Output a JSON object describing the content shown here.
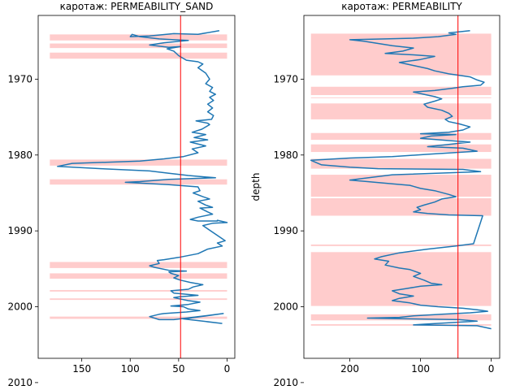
{
  "chart_data": [
    {
      "type": "line",
      "title": "каротаж: PERMEABILITY_SAND",
      "xlabel": "",
      "ylabel": "",
      "x_inverted": true,
      "y_inverted": true,
      "xlim": [
        195,
        -8
      ],
      "ylim": [
        2006.8,
        1961.6
      ],
      "xticks": [
        150,
        100,
        50,
        0
      ],
      "yticks": [
        1970,
        1980,
        1990,
        2000,
        2010
      ],
      "grid": false,
      "threshold": {
        "x": 48,
        "color": "#ff0000"
      },
      "series_color": "#1f77b4",
      "fill_color": "#ffcccc",
      "fill_bands": [
        [
          1964.1,
          1964.9,
          183
        ],
        [
          1965.3,
          1965.9,
          183
        ],
        [
          1966.5,
          1967.3,
          183
        ],
        [
          1980.6,
          1981.4,
          183
        ],
        [
          1983.2,
          1983.9,
          183
        ],
        [
          1994.1,
          1994.9,
          183
        ],
        [
          1995.6,
          1996.3,
          183
        ],
        [
          1997.8,
          1998.0,
          183
        ],
        [
          1998.9,
          1999.1,
          183
        ],
        [
          2001.3,
          2001.6,
          183
        ]
      ],
      "series": [
        {
          "points": [
            [
              8,
              1963.6
            ],
            [
              30,
              1964.1
            ],
            [
              55,
              1964.0
            ],
            [
              80,
              1964.3
            ],
            [
              100,
              1964.4
            ],
            [
              98,
              1964.1
            ],
            [
              90,
              1964.4
            ],
            [
              70,
              1964.7
            ],
            [
              55,
              1964.8
            ],
            [
              40,
              1964.9
            ],
            [
              65,
              1965.2
            ],
            [
              80,
              1965.5
            ],
            [
              60,
              1965.8
            ],
            [
              48,
              1965.7
            ],
            [
              62,
              1966.0
            ],
            [
              55,
              1966.3
            ],
            [
              50,
              1966.9
            ],
            [
              42,
              1967.5
            ],
            [
              30,
              1967.7
            ],
            [
              25,
              1968.0
            ],
            [
              30,
              1968.5
            ],
            [
              22,
              1969.2
            ],
            [
              18,
              1970.0
            ],
            [
              22,
              1970.6
            ],
            [
              15,
              1971.1
            ],
            [
              18,
              1971.6
            ],
            [
              12,
              1972.0
            ],
            [
              18,
              1972.4
            ],
            [
              14,
              1972.8
            ],
            [
              20,
              1973.3
            ],
            [
              15,
              1973.8
            ],
            [
              20,
              1974.3
            ],
            [
              14,
              1974.8
            ],
            [
              16,
              1975.3
            ],
            [
              32,
              1975.5
            ],
            [
              20,
              1975.8
            ],
            [
              18,
              1976.0
            ],
            [
              26,
              1976.6
            ],
            [
              36,
              1977.0
            ],
            [
              22,
              1977.3
            ],
            [
              34,
              1977.7
            ],
            [
              20,
              1978.0
            ],
            [
              38,
              1978.3
            ],
            [
              22,
              1978.8
            ],
            [
              36,
              1979.2
            ],
            [
              30,
              1979.7
            ],
            [
              45,
              1980.2
            ],
            [
              65,
              1980.5
            ],
            [
              90,
              1980.8
            ],
            [
              160,
              1981.1
            ],
            [
              175,
              1981.5
            ],
            [
              130,
              1981.8
            ],
            [
              80,
              1982.1
            ],
            [
              60,
              1982.4
            ],
            [
              40,
              1982.7
            ],
            [
              12,
              1983.0
            ],
            [
              60,
              1983.2
            ],
            [
              90,
              1983.5
            ],
            [
              105,
              1983.6
            ],
            [
              60,
              1983.9
            ],
            [
              30,
              1984.2
            ],
            [
              28,
              1984.7
            ],
            [
              35,
              1985.0
            ],
            [
              25,
              1985.5
            ],
            [
              18,
              1985.8
            ],
            [
              30,
              1986.1
            ],
            [
              22,
              1986.6
            ],
            [
              15,
              1986.9
            ],
            [
              28,
              1987.0
            ],
            [
              20,
              1987.5
            ],
            [
              15,
              1987.8
            ],
            [
              30,
              1988.2
            ],
            [
              38,
              1988.5
            ],
            [
              30,
              1988.7
            ],
            [
              10,
              1988.7
            ],
            [
              10,
              1988.6
            ],
            [
              0,
              1988.9
            ],
            [
              15,
              1989.0
            ],
            [
              25,
              1989.3
            ],
            [
              2,
              1991.3
            ],
            [
              10,
              1991.6
            ],
            [
              5,
              1992.0
            ],
            [
              20,
              1992.4
            ],
            [
              30,
              1993.0
            ],
            [
              50,
              1993.5
            ],
            [
              65,
              1993.8
            ],
            [
              72,
              1993.9
            ],
            [
              70,
              1994.3
            ],
            [
              80,
              1994.6
            ],
            [
              75,
              1994.8
            ],
            [
              60,
              1995.2
            ],
            [
              42,
              1995.3
            ],
            [
              60,
              1995.4
            ],
            [
              58,
              1995.6
            ],
            [
              50,
              1995.9
            ],
            [
              55,
              1996.2
            ],
            [
              48,
              1996.5
            ],
            [
              38,
              1996.8
            ],
            [
              25,
              1997.1
            ],
            [
              35,
              1997.4
            ],
            [
              40,
              1997.7
            ],
            [
              58,
              1997.9
            ],
            [
              55,
              1998.2
            ],
            [
              30,
              1998.5
            ],
            [
              50,
              1998.7
            ],
            [
              55,
              1998.8
            ],
            [
              40,
              1999.2
            ],
            [
              28,
              1999.4
            ],
            [
              40,
              1999.7
            ],
            [
              58,
              1999.9
            ],
            [
              45,
              2000.0
            ],
            [
              40,
              2000.3
            ],
            [
              28,
              2000.5
            ],
            [
              42,
              2000.7
            ],
            [
              65,
              2000.9
            ],
            [
              70,
              2001.0
            ],
            [
              80,
              2001.3
            ],
            [
              70,
              2001.7
            ],
            [
              55,
              2001.7
            ],
            [
              4,
              2000.9
            ],
            [
              45,
              2001.6
            ],
            [
              5,
              2002.2
            ]
          ]
        }
      ]
    },
    {
      "type": "line",
      "title": "каротаж: PERMEABILITY",
      "xlabel": "",
      "ylabel": "depth",
      "x_inverted": true,
      "y_inverted": true,
      "xlim": [
        265,
        -12
      ],
      "ylim": [
        2006.8,
        1961.6
      ],
      "xticks": [
        200,
        100,
        0
      ],
      "yticks": [
        1970,
        1980,
        1990,
        2000,
        2010
      ],
      "grid": false,
      "threshold": {
        "x": 47,
        "color": "#ff0000"
      },
      "series_color": "#1f77b4",
      "fill_color": "#ffcccc",
      "fill_bands": [
        [
          1964.0,
          1969.5,
          255
        ],
        [
          1971.0,
          1972.1,
          255
        ],
        [
          1972.4,
          1972.5,
          255
        ],
        [
          1973.2,
          1975.3,
          255
        ],
        [
          1977.1,
          1978.0,
          255
        ],
        [
          1978.6,
          1979.6,
          255
        ],
        [
          1980.5,
          1981.8,
          255
        ],
        [
          1982.6,
          1985.5,
          255
        ],
        [
          1985.7,
          1988.0,
          255
        ],
        [
          1991.8,
          1992.0,
          255
        ],
        [
          1992.8,
          1999.9,
          255
        ],
        [
          2001.0,
          2001.8,
          255
        ],
        [
          2002.3,
          2002.5,
          255
        ]
      ],
      "series": [
        {
          "points": [
            [
              30,
              1963.6
            ],
            [
              60,
              1963.9
            ],
            [
              50,
              1964.1
            ],
            [
              75,
              1964.4
            ],
            [
              110,
              1964.6
            ],
            [
              150,
              1964.7
            ],
            [
              200,
              1964.8
            ],
            [
              180,
              1965.0
            ],
            [
              160,
              1965.3
            ],
            [
              140,
              1965.6
            ],
            [
              110,
              1965.9
            ],
            [
              125,
              1966.3
            ],
            [
              150,
              1966.6
            ],
            [
              110,
              1966.8
            ],
            [
              80,
              1967.0
            ],
            [
              100,
              1967.4
            ],
            [
              130,
              1967.8
            ],
            [
              110,
              1968.2
            ],
            [
              90,
              1968.6
            ],
            [
              80,
              1968.9
            ],
            [
              60,
              1969.3
            ],
            [
              30,
              1969.7
            ],
            [
              20,
              1970.1
            ],
            [
              10,
              1970.4
            ],
            [
              15,
              1970.8
            ],
            [
              40,
              1971.0
            ],
            [
              55,
              1971.2
            ],
            [
              80,
              1971.5
            ],
            [
              110,
              1971.7
            ],
            [
              95,
              1972.0
            ],
            [
              80,
              1972.3
            ],
            [
              70,
              1972.6
            ],
            [
              80,
              1972.9
            ],
            [
              95,
              1973.3
            ],
            [
              90,
              1973.7
            ],
            [
              70,
              1974.1
            ],
            [
              60,
              1974.5
            ],
            [
              55,
              1974.9
            ],
            [
              65,
              1975.3
            ],
            [
              60,
              1975.6
            ],
            [
              45,
              1975.9
            ],
            [
              30,
              1976.3
            ],
            [
              40,
              1976.7
            ],
            [
              60,
              1977.0
            ],
            [
              100,
              1977.2
            ],
            [
              50,
              1977.3
            ],
            [
              85,
              1977.5
            ],
            [
              100,
              1977.8
            ],
            [
              60,
              1978.1
            ],
            [
              30,
              1978.3
            ],
            [
              60,
              1978.6
            ],
            [
              90,
              1978.9
            ],
            [
              40,
              1979.1
            ],
            [
              20,
              1979.5
            ],
            [
              55,
              1979.7
            ],
            [
              90,
              1979.9
            ],
            [
              140,
              1980.2
            ],
            [
              200,
              1980.4
            ],
            [
              255,
              1980.7
            ],
            [
              240,
              1981.3
            ],
            [
              200,
              1981.6
            ],
            [
              160,
              1981.8
            ],
            [
              40,
              1981.9
            ],
            [
              15,
              1982.2
            ],
            [
              45,
              1982.3
            ],
            [
              140,
              1982.6
            ],
            [
              200,
              1983.3
            ],
            [
              175,
              1983.5
            ],
            [
              140,
              1983.8
            ],
            [
              115,
              1984.0
            ],
            [
              100,
              1984.4
            ],
            [
              80,
              1984.7
            ],
            [
              60,
              1985.2
            ],
            [
              50,
              1985.5
            ],
            [
              70,
              1985.8
            ],
            [
              80,
              1986.2
            ],
            [
              95,
              1986.6
            ],
            [
              105,
              1986.9
            ],
            [
              100,
              1987.2
            ],
            [
              110,
              1987.5
            ],
            [
              90,
              1987.7
            ],
            [
              60,
              1987.9
            ],
            [
              12,
              1988.0
            ],
            [
              25,
              1991.7
            ],
            [
              50,
              1992.0
            ],
            [
              90,
              1992.4
            ],
            [
              130,
              1992.9
            ],
            [
              155,
              1993.4
            ],
            [
              165,
              1993.7
            ],
            [
              145,
              1994.0
            ],
            [
              150,
              1994.5
            ],
            [
              130,
              1994.9
            ],
            [
              115,
              1995.1
            ],
            [
              100,
              1995.6
            ],
            [
              110,
              1996.0
            ],
            [
              95,
              1996.5
            ],
            [
              85,
              1996.9
            ],
            [
              70,
              1997.1
            ],
            [
              100,
              1997.3
            ],
            [
              120,
              1997.6
            ],
            [
              140,
              1997.9
            ],
            [
              130,
              1998.3
            ],
            [
              110,
              1998.6
            ],
            [
              130,
              1998.9
            ],
            [
              140,
              1999.2
            ],
            [
              115,
              1999.5
            ],
            [
              100,
              1999.8
            ],
            [
              75,
              2000.0
            ],
            [
              40,
              2000.2
            ],
            [
              20,
              2000.4
            ],
            [
              5,
              2000.6
            ],
            [
              30,
              2000.8
            ],
            [
              70,
              2001.0
            ],
            [
              110,
              2001.2
            ],
            [
              130,
              2001.4
            ],
            [
              175,
              2001.5
            ],
            [
              110,
              2001.6
            ],
            [
              45,
              2001.7
            ],
            [
              20,
              2001.9
            ],
            [
              95,
              2002.3
            ],
            [
              110,
              2002.4
            ],
            [
              20,
              2002.5
            ],
            [
              0,
              2002.9
            ]
          ]
        }
      ]
    }
  ]
}
